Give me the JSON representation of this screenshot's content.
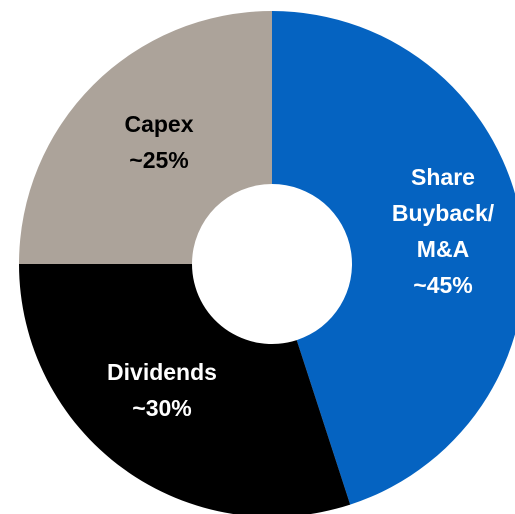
{
  "chart_data": {
    "type": "donut",
    "categories": [
      "Share Buyback/ M&A",
      "Dividends",
      "Capex"
    ],
    "values": [
      45,
      30,
      25
    ],
    "value_labels": [
      "~45%",
      "~30%",
      "~25%"
    ],
    "colors": [
      "#0563c1",
      "#000000",
      "#aca39a"
    ]
  }
}
